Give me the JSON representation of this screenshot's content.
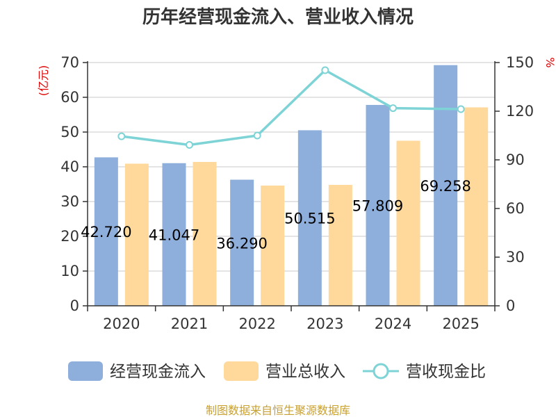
{
  "chart_data": {
    "type": "bar",
    "title": "历年经营现金流入、营业收入情况",
    "categories": [
      "2020",
      "2021",
      "2022",
      "2023",
      "2024",
      "2025"
    ],
    "series": [
      {
        "name": "经营现金流入",
        "type": "bar",
        "axis": "left",
        "color": "#8eaedb",
        "values": [
          42.72,
          41.047,
          36.29,
          50.515,
          57.809,
          69.258
        ],
        "labels": [
          "42.720",
          "41.047",
          "36.290",
          "50.515",
          "57.809",
          "69.258"
        ]
      },
      {
        "name": "营业总收入",
        "type": "bar",
        "axis": "left",
        "color": "#fed99b",
        "values": [
          40.9,
          41.4,
          34.6,
          34.8,
          47.5,
          57.1
        ]
      },
      {
        "name": "营收现金比",
        "type": "line",
        "axis": "right",
        "color": "#7dd3d5",
        "values": [
          104.5,
          99.2,
          105.0,
          145.3,
          121.9,
          121.3
        ]
      }
    ],
    "left_axis": {
      "label": "(亿元)",
      "min": 0,
      "max": 70,
      "ticks": [
        0,
        10,
        20,
        30,
        40,
        50,
        60,
        70
      ]
    },
    "right_axis": {
      "label": "%",
      "min": 0,
      "max": 150,
      "ticks": [
        0,
        30,
        60,
        90,
        120,
        150
      ]
    },
    "grid": true,
    "legend": "bottom"
  },
  "source": "制图数据来自恒生聚源数据库"
}
